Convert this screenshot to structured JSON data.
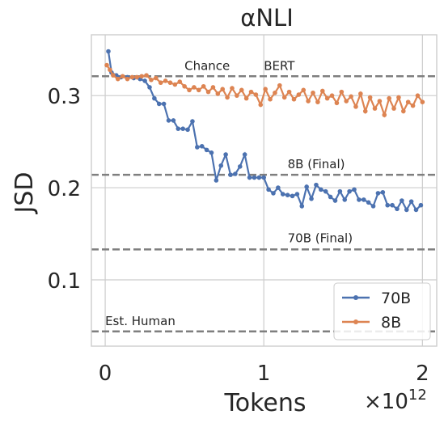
{
  "chart_data": {
    "type": "line",
    "title": "αNLI",
    "xlabel": "Tokens",
    "ylabel": "JSD",
    "x_multiplier": {
      "base": "×10",
      "exponent": "12"
    },
    "xlim": [
      -0.087,
      2.09
    ],
    "xticks": [
      0,
      1,
      2
    ],
    "ylim": [
      0.028,
      0.366
    ],
    "yticks": [
      0.1,
      0.2,
      0.3
    ],
    "grid": true,
    "legend": "lower right",
    "series": [
      {
        "name": "70B",
        "color": "#4c72b0",
        "x": [
          0.02,
          0.04,
          0.07,
          0.1,
          0.14,
          0.18,
          0.22,
          0.25,
          0.28,
          0.31,
          0.34,
          0.37,
          0.4,
          0.43,
          0.46,
          0.49,
          0.52,
          0.55,
          0.58,
          0.61,
          0.64,
          0.67,
          0.7,
          0.73,
          0.76,
          0.79,
          0.82,
          0.85,
          0.88,
          0.91,
          0.94,
          0.97,
          1.0,
          1.03,
          1.06,
          1.09,
          1.12,
          1.15,
          1.18,
          1.21,
          1.24,
          1.27,
          1.3,
          1.33,
          1.36,
          1.39,
          1.42,
          1.45,
          1.48,
          1.51,
          1.54,
          1.57,
          1.6,
          1.63,
          1.66,
          1.69,
          1.72,
          1.75,
          1.78,
          1.81,
          1.84,
          1.87,
          1.9,
          1.93,
          1.96,
          1.99
        ],
        "values": [
          0.348,
          0.325,
          0.322,
          0.32,
          0.32,
          0.319,
          0.318,
          0.316,
          0.309,
          0.297,
          0.291,
          0.291,
          0.273,
          0.273,
          0.264,
          0.264,
          0.263,
          0.272,
          0.244,
          0.245,
          0.241,
          0.238,
          0.208,
          0.224,
          0.236,
          0.214,
          0.215,
          0.223,
          0.236,
          0.211,
          0.211,
          0.211,
          0.211,
          0.198,
          0.194,
          0.2,
          0.193,
          0.192,
          0.191,
          0.193,
          0.18,
          0.201,
          0.188,
          0.203,
          0.198,
          0.196,
          0.19,
          0.186,
          0.196,
          0.187,
          0.196,
          0.198,
          0.187,
          0.187,
          0.184,
          0.18,
          0.194,
          0.195,
          0.181,
          0.181,
          0.177,
          0.186,
          0.176,
          0.185,
          0.176,
          0.181
        ]
      },
      {
        "name": "8B",
        "color": "#dd8452",
        "x": [
          0.01,
          0.03,
          0.05,
          0.08,
          0.11,
          0.14,
          0.17,
          0.2,
          0.23,
          0.26,
          0.29,
          0.32,
          0.35,
          0.38,
          0.41,
          0.44,
          0.47,
          0.5,
          0.53,
          0.56,
          0.59,
          0.62,
          0.65,
          0.68,
          0.71,
          0.74,
          0.77,
          0.8,
          0.83,
          0.86,
          0.89,
          0.92,
          0.95,
          0.98,
          1.01,
          1.04,
          1.07,
          1.1,
          1.13,
          1.16,
          1.19,
          1.22,
          1.25,
          1.28,
          1.31,
          1.34,
          1.37,
          1.4,
          1.43,
          1.46,
          1.49,
          1.52,
          1.55,
          1.58,
          1.61,
          1.64,
          1.67,
          1.7,
          1.73,
          1.76,
          1.79,
          1.82,
          1.85,
          1.88,
          1.91,
          1.94,
          1.97,
          2.0
        ],
        "values": [
          0.333,
          0.328,
          0.322,
          0.318,
          0.321,
          0.318,
          0.32,
          0.32,
          0.321,
          0.322,
          0.317,
          0.319,
          0.314,
          0.316,
          0.314,
          0.312,
          0.315,
          0.31,
          0.306,
          0.309,
          0.306,
          0.31,
          0.304,
          0.309,
          0.302,
          0.307,
          0.298,
          0.308,
          0.3,
          0.306,
          0.297,
          0.304,
          0.301,
          0.29,
          0.307,
          0.296,
          0.303,
          0.311,
          0.298,
          0.304,
          0.296,
          0.301,
          0.306,
          0.294,
          0.303,
          0.293,
          0.305,
          0.297,
          0.3,
          0.292,
          0.304,
          0.294,
          0.299,
          0.288,
          0.302,
          0.283,
          0.298,
          0.286,
          0.294,
          0.279,
          0.297,
          0.286,
          0.298,
          0.283,
          0.293,
          0.289,
          0.3,
          0.293
        ]
      }
    ],
    "reference_lines": [
      {
        "label": "Chance",
        "value": 0.321
      },
      {
        "label": "BERT",
        "value": 0.321
      },
      {
        "label": "8B (Final)",
        "value": 0.214
      },
      {
        "label": "70B (Final)",
        "value": 0.133
      },
      {
        "label": "Est. Human",
        "value": 0.044
      }
    ]
  }
}
